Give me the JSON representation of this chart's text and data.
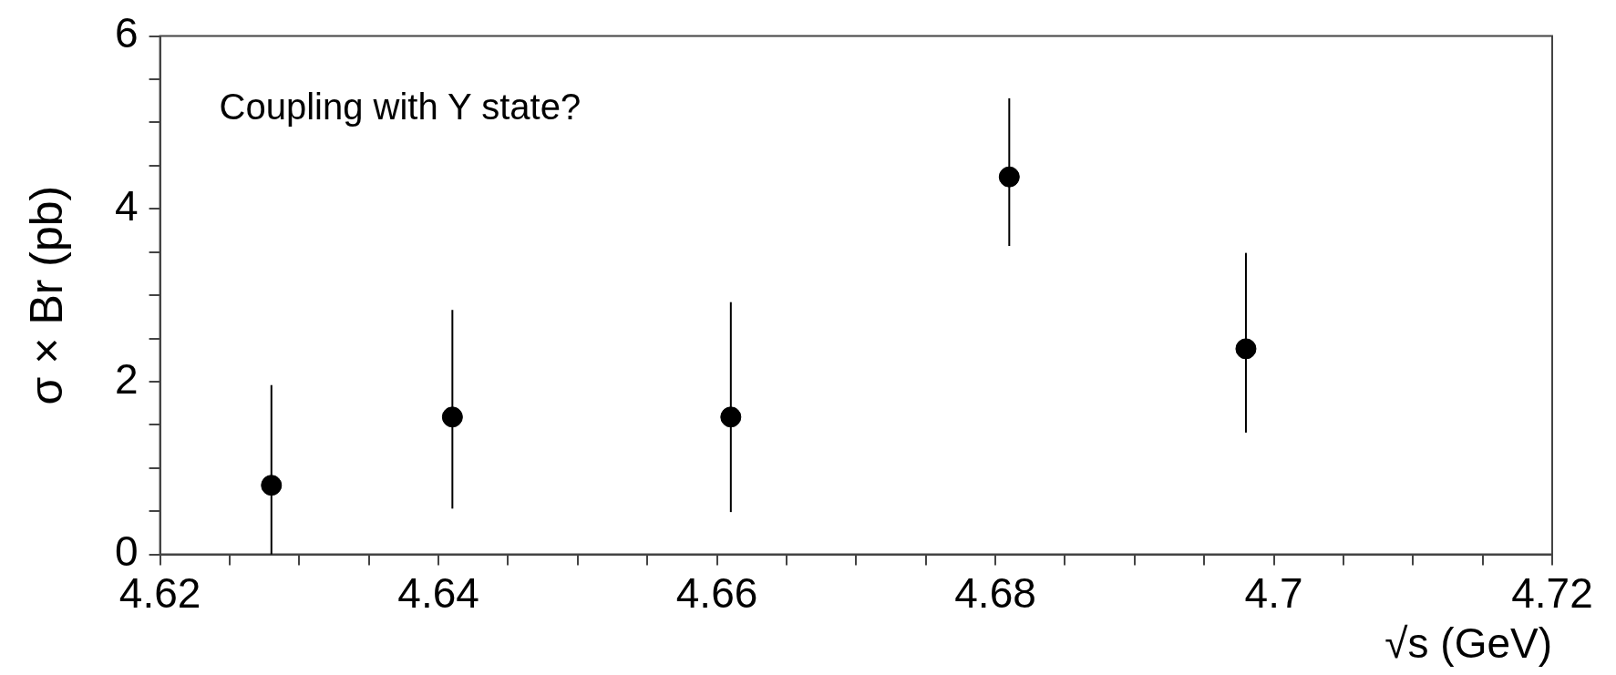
{
  "chart_data": {
    "type": "scatter",
    "xlabel": "√s (GeV)",
    "ylabel": "σ × Br (pb)",
    "annotations": [
      "Coupling with Y state?"
    ],
    "x": [
      4.628,
      4.641,
      4.661,
      4.681,
      4.698
    ],
    "series": [
      {
        "color": "#000000",
        "values": [
          0.8,
          1.59,
          1.59,
          4.37,
          2.38
        ],
        "errors": [
          [
            0,
            1.96
          ],
          [
            0.53,
            2.83
          ],
          [
            0.49,
            2.92
          ],
          [
            3.57,
            5.28
          ],
          [
            1.41,
            3.49
          ]
        ]
      }
    ],
    "xlim": [
      4.62,
      4.72
    ],
    "xticks": [
      4.62,
      {
        "value": 4.625,
        "label": null
      },
      {
        "value": 4.63,
        "label": null
      },
      {
        "value": 4.635,
        "label": null
      },
      4.64,
      {
        "value": 4.645,
        "label": null
      },
      {
        "value": 4.65,
        "label": null
      },
      {
        "value": 4.655,
        "label": null
      },
      4.66,
      {
        "value": 4.665,
        "label": null
      },
      {
        "value": 4.67,
        "label": null
      },
      {
        "value": 4.675,
        "label": null
      },
      4.68,
      {
        "value": 4.685,
        "label": null
      },
      {
        "value": 4.69,
        "label": null
      },
      {
        "value": 4.695,
        "label": null
      },
      4.7,
      {
        "value": 4.705,
        "label": null
      },
      {
        "value": 4.71,
        "label": null
      },
      {
        "value": 4.715,
        "label": null
      },
      4.72
    ],
    "ylim": [
      0,
      6
    ],
    "yticks": [
      0,
      {
        "value": 0.5,
        "label": null
      },
      {
        "value": 1,
        "label": null
      },
      {
        "value": 1.5,
        "label": null
      },
      2,
      {
        "value": 2.5,
        "label": null
      },
      {
        "value": 3,
        "label": null
      },
      {
        "value": 3.5,
        "label": null
      },
      4,
      {
        "value": 4.5,
        "label": null
      },
      {
        "value": 5,
        "label": null
      },
      {
        "value": 5.5,
        "label": null
      },
      6
    ],
    "grid": false,
    "legend": false,
    "marker": "circle"
  }
}
